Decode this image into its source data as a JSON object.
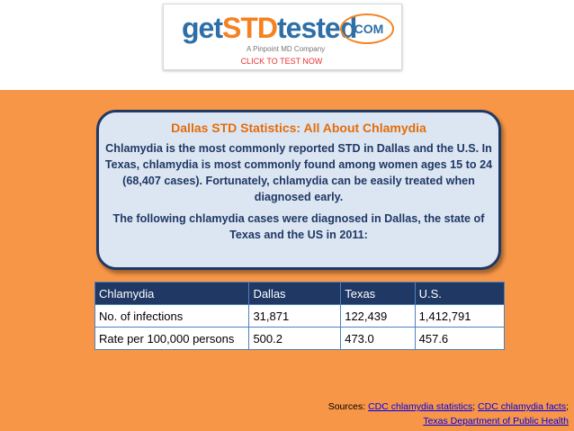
{
  "logo": {
    "parts": [
      "get",
      "STD",
      "tested"
    ],
    "domain": ".COM",
    "tagline": "A Pinpoint MD Company"
  },
  "cta": "CLICK TO TEST NOW",
  "box": {
    "title": "Dallas STD Statistics: All About Chlamydia",
    "paragraphs": [
      "Chlamydia is the most commonly reported STD in Dallas and the U.S. In Texas, chlamydia is most commonly found among women ages 15 to 24 (68,407 cases). Fortunately, chlamydia can be easily treated when diagnosed early.",
      "The following chlamydia cases were diagnosed in Dallas, the state of Texas and the US in 2011:"
    ]
  },
  "table": {
    "header": [
      "Chlamydia",
      "Dallas",
      "Texas",
      "U.S."
    ],
    "rows": [
      [
        "No. of infections",
        "31,871",
        "122,439",
        "1,412,791"
      ],
      [
        "Rate per 100,000 persons",
        "500.2",
        "473.0",
        "457.6"
      ]
    ]
  },
  "sources": {
    "label": "Sources:",
    "separator": ";",
    "links": [
      "CDC chlamydia statistics",
      "CDC chlamydia facts",
      "Texas Department of Public Health"
    ]
  }
}
